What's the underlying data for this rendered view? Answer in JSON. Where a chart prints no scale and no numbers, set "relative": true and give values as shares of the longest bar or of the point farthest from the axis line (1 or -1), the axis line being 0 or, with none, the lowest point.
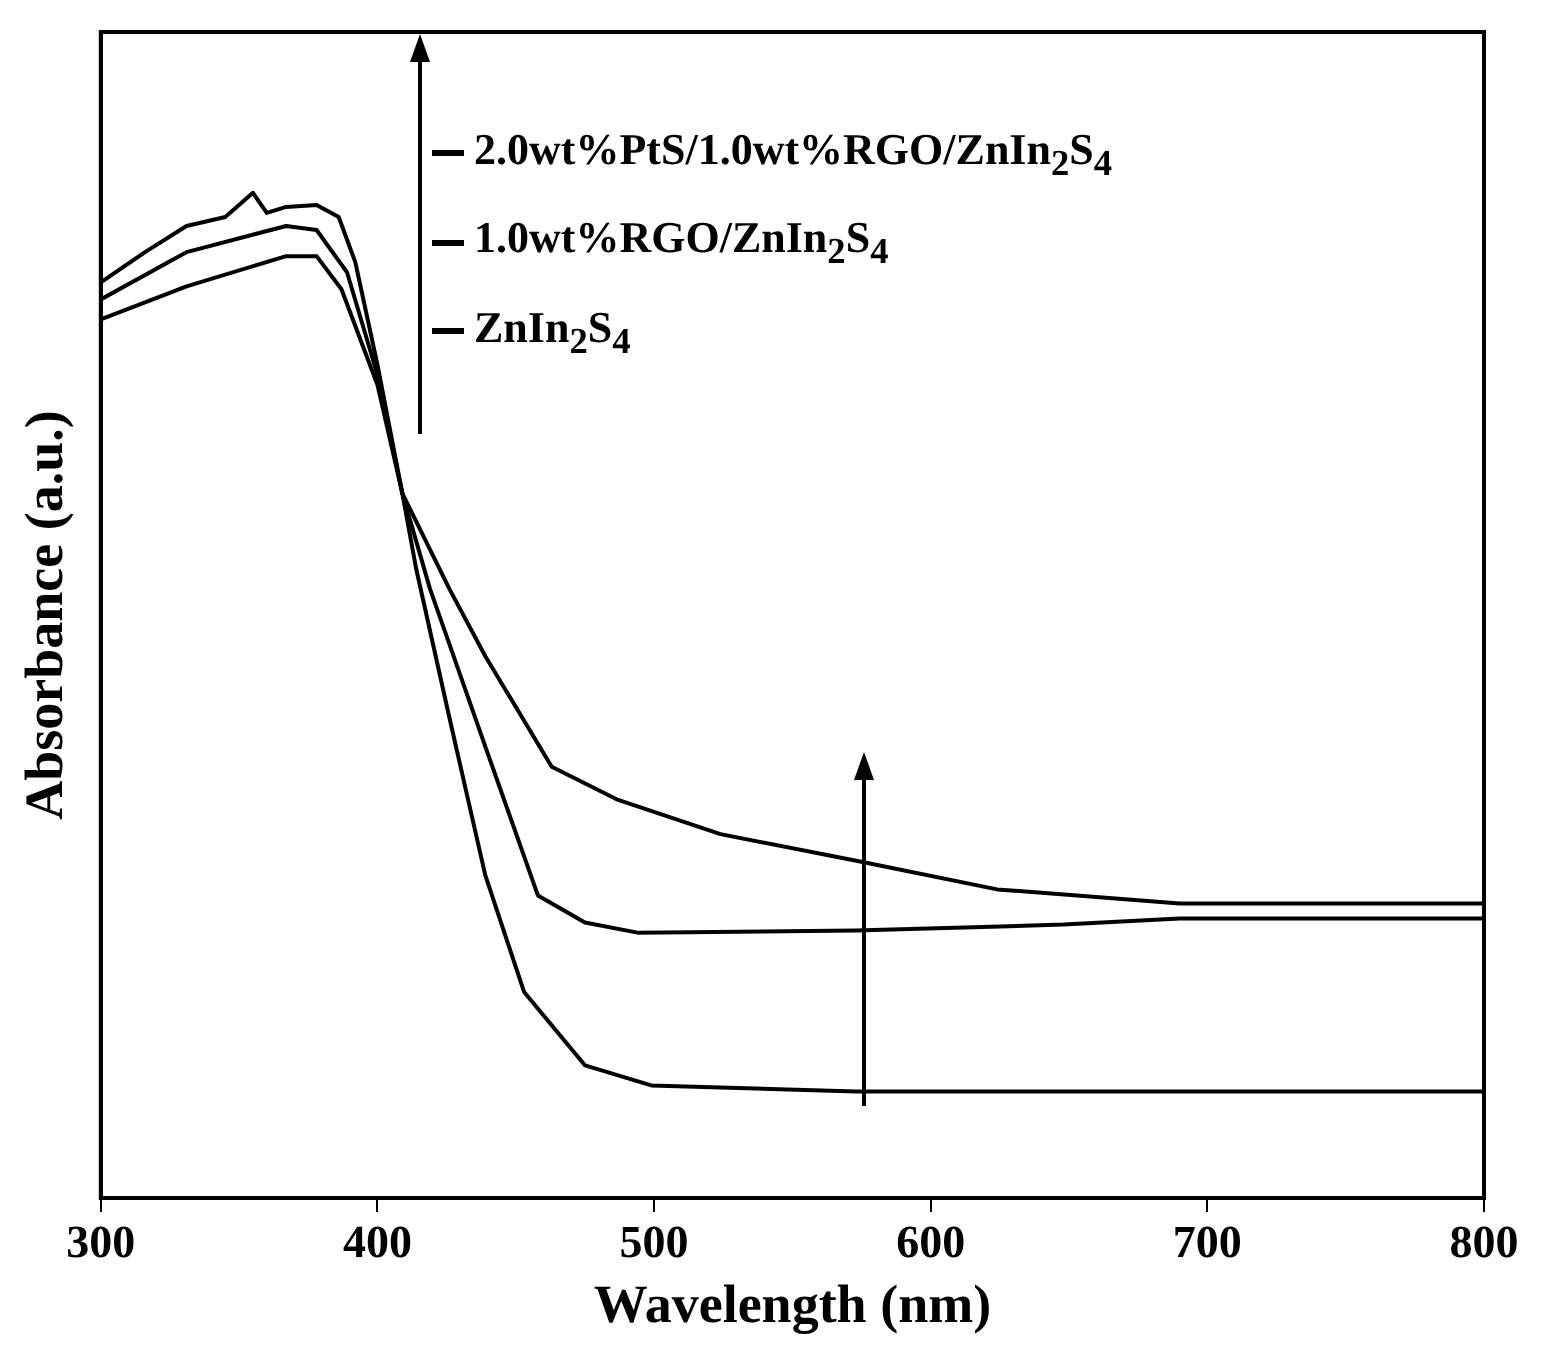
{
  "chart_data": {
    "type": "line",
    "xlabel": "Wavelength (nm)",
    "ylabel": "Absorbance (a.u.)",
    "relative": true,
    "xlim": [
      300,
      800
    ],
    "xticks": [
      300,
      400,
      500,
      600,
      700,
      800
    ],
    "grid": false,
    "legend": "top left",
    "marker": "none",
    "line_style": "solid",
    "series": [
      {
        "name": "2.0wt%PtS/1.0wt%RGO/ZnIn$_{2}$S$_{4}$",
        "color": "#000000",
        "x": [
          300,
          331,
          367,
          378,
          387,
          400,
          409,
          426,
          439,
          463,
          487,
          524,
          574,
          624,
          690,
          800
        ],
        "values": [
          0.874,
          0.907,
          0.937,
          0.937,
          0.904,
          0.809,
          0.701,
          0.606,
          0.539,
          0.429,
          0.396,
          0.362,
          0.335,
          0.307,
          0.293,
          0.293
        ]
      },
      {
        "name": "1.0wt%RGO/ZnIn$_{2}$S$_{4}$",
        "color": "#000000",
        "x": [
          300,
          331,
          367,
          378,
          389,
          400,
          409,
          419,
          439,
          458,
          475,
          494,
          573,
          648,
          690,
          800
        ],
        "values": [
          0.894,
          0.941,
          0.967,
          0.963,
          0.921,
          0.819,
          0.701,
          0.606,
          0.449,
          0.301,
          0.274,
          0.264,
          0.266,
          0.272,
          0.278,
          0.278
        ]
      },
      {
        "name": "ZnIn$_{2}$S$_{4}$",
        "color": "#000000",
        "x": [
          300,
          316,
          331,
          345,
          355,
          360,
          367,
          378,
          386,
          392,
          400,
          409,
          414,
          426,
          439,
          453,
          475,
          499,
          573,
          800
        ],
        "values": [
          0.911,
          0.941,
          0.967,
          0.976,
          1.0,
          0.98,
          0.986,
          0.988,
          0.976,
          0.931,
          0.829,
          0.701,
          0.626,
          0.478,
          0.321,
          0.205,
          0.132,
          0.112,
          0.106,
          0.106
        ]
      }
    ]
  }
}
